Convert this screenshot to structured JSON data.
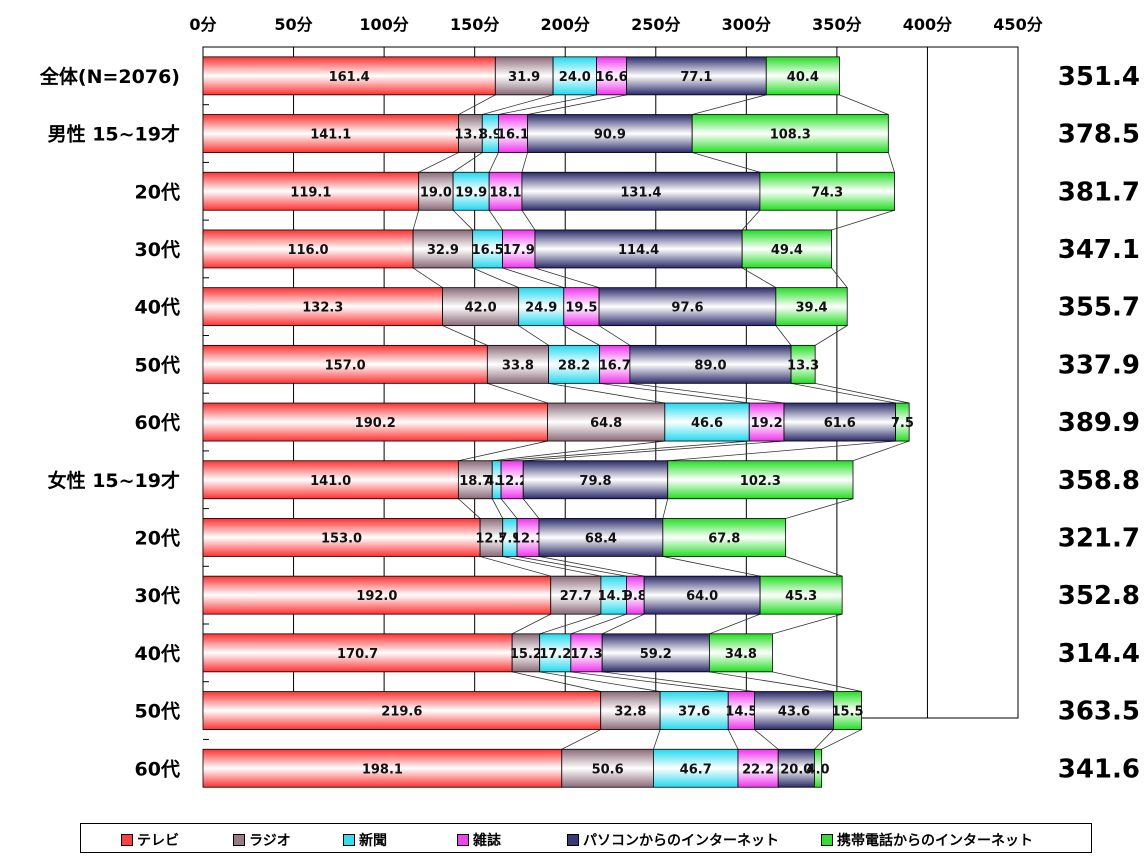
{
  "chart_data": {
    "type": "bar",
    "orientation": "horizontal",
    "stacked": true,
    "x_ticks": [
      "0分",
      "50分",
      "100分",
      "150分",
      "200分",
      "250分",
      "300分",
      "350分",
      "400分",
      "450分"
    ],
    "xlim": [
      0,
      450
    ],
    "categories": [
      "全体(N=2076)",
      "男性 15~19才",
      "20代",
      "30代",
      "40代",
      "50代",
      "60代",
      "女性 15~19才",
      "20代",
      "30代",
      "40代",
      "50代",
      "60代"
    ],
    "totals": [
      "351.4",
      "378.5",
      "381.7",
      "347.1",
      "355.7",
      "337.9",
      "389.9",
      "358.8",
      "321.7",
      "352.8",
      "314.4",
      "363.5",
      "341.6"
    ],
    "series": [
      {
        "name": "テレビ",
        "color": "#ff4040",
        "values": [
          161.4,
          141.1,
          119.1,
          116.0,
          132.3,
          157.0,
          190.2,
          141.0,
          153.0,
          192.0,
          170.7,
          219.6,
          198.1
        ]
      },
      {
        "name": "ラジオ",
        "color": "#9a7a86",
        "values": [
          31.9,
          13.1,
          19.0,
          32.9,
          42.0,
          33.8,
          64.8,
          18.7,
          12.5,
          27.7,
          15.2,
          32.8,
          50.6
        ]
      },
      {
        "name": "新聞",
        "color": "#33ddee",
        "values": [
          24.0,
          8.9,
          19.9,
          16.5,
          24.9,
          28.2,
          46.6,
          4.9,
          7.9,
          14.1,
          17.2,
          37.6,
          46.7
        ]
      },
      {
        "name": "雑誌",
        "color": "#ee44ee",
        "values": [
          16.6,
          16.1,
          18.1,
          17.9,
          19.5,
          16.7,
          19.2,
          12.2,
          12.1,
          9.8,
          17.3,
          14.5,
          22.2
        ]
      },
      {
        "name": "パソコンからのインターネット",
        "color": "#3a3a78",
        "values": [
          77.1,
          90.9,
          131.4,
          114.4,
          97.6,
          89.0,
          61.6,
          79.8,
          68.4,
          64.0,
          59.2,
          43.6,
          20.0
        ]
      },
      {
        "name": "携帯電話からのインターネット",
        "color": "#33dd33",
        "values": [
          40.4,
          108.3,
          74.3,
          49.4,
          39.4,
          13.3,
          7.5,
          102.3,
          67.8,
          45.3,
          34.8,
          15.5,
          4.0
        ]
      }
    ],
    "grid": true,
    "legend_position": "bottom"
  },
  "legend": {
    "items": [
      "テレビ",
      "ラジオ",
      "新聞",
      "雑誌",
      "パソコンからのインターネット",
      "携帯電話からのインターネット"
    ]
  }
}
